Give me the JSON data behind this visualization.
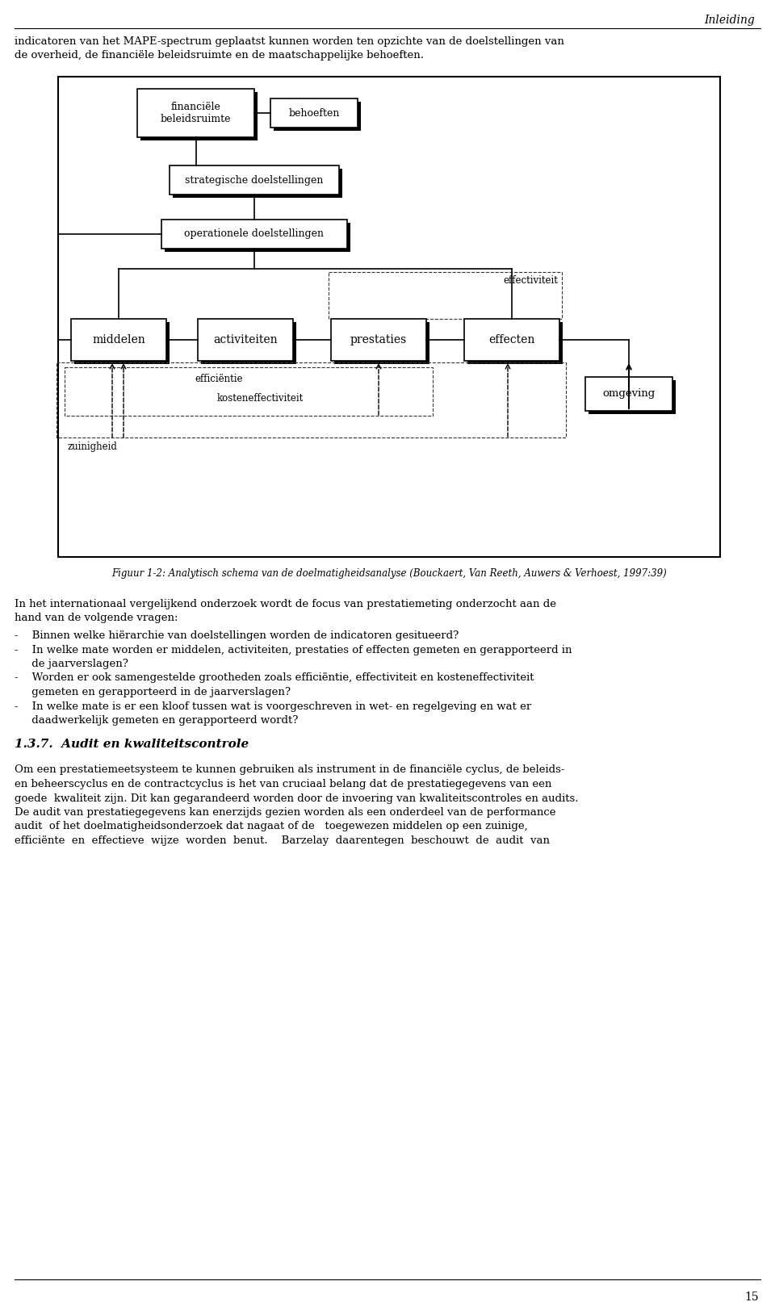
{
  "page_title": "Inleiding",
  "page_number": "15",
  "top_text_line1": "indicatoren van het MAPE-spectrum geplaatst kunnen worden ten opzichte van de doelstellingen van",
  "top_text_line2": "de overheid, de financiële beleidsruimte en de maatschappelijke behoeften.",
  "figure_caption": "Figuur 1-2: Analytisch schema van de doelmatigheidsanalyse (Bouckaert, Van Reeth, Auwers & Verhoest, 1997:39)",
  "body_text_1a": "In het internationaal vergelijkend onderzoek wordt de focus van prestatiemeting onderzocht aan de",
  "body_text_1b": "hand van de volgende vragen:",
  "bullet_1": "-    Binnen welke hiërarchie van doelstellingen worden de indicatoren gesitueerd?",
  "bullet_2a": "-    In welke mate worden er middelen, activiteiten, prestaties of effecten gemeten en gerapporteerd in",
  "bullet_2b": "     de jaarverslagen?",
  "bullet_3a": "-    Worden er ook samengestelde grootheden zoals efficiëntie, effectiviteit en kosteneffectiviteit",
  "bullet_3b": "     gemeten en gerapporteerd in de jaarverslagen?",
  "bullet_4a": "-    In welke mate is er een kloof tussen wat is voorgeschreven in wet- en regelgeving en wat er",
  "bullet_4b": "     daadwerkelijk gemeten en gerapporteerd wordt?",
  "section_title": "1.3.7.  Audit en kwaliteitscontrole",
  "body2_l1": "Om een prestatiemeetsysteem te kunnen gebruiken als instrument in de financiële cyclus, de beleids-",
  "body2_l2": "en beheerscyclus en de contractcyclus is het van cruciaal belang dat de prestatiegegevens van een",
  "body2_l3": "goede  kwaliteit zijn. Dit kan gegarandeerd worden door de invoering van kwaliteitscontroles en audits.",
  "body2_l4": "De audit van prestatiegegevens kan enerzijds gezien worden als een onderdeel van de performance",
  "body2_l5": "audit  of het doelmatigheidsonderzoek dat nagaat of de   toegewezen middelen op een zuinige,",
  "body2_l6": "efficiënte  en  effectieve  wijze  worden  benut.    Barzelay  daarentegen  beschouwt  de  audit  van",
  "bg_color": "#ffffff",
  "text_color": "#000000"
}
